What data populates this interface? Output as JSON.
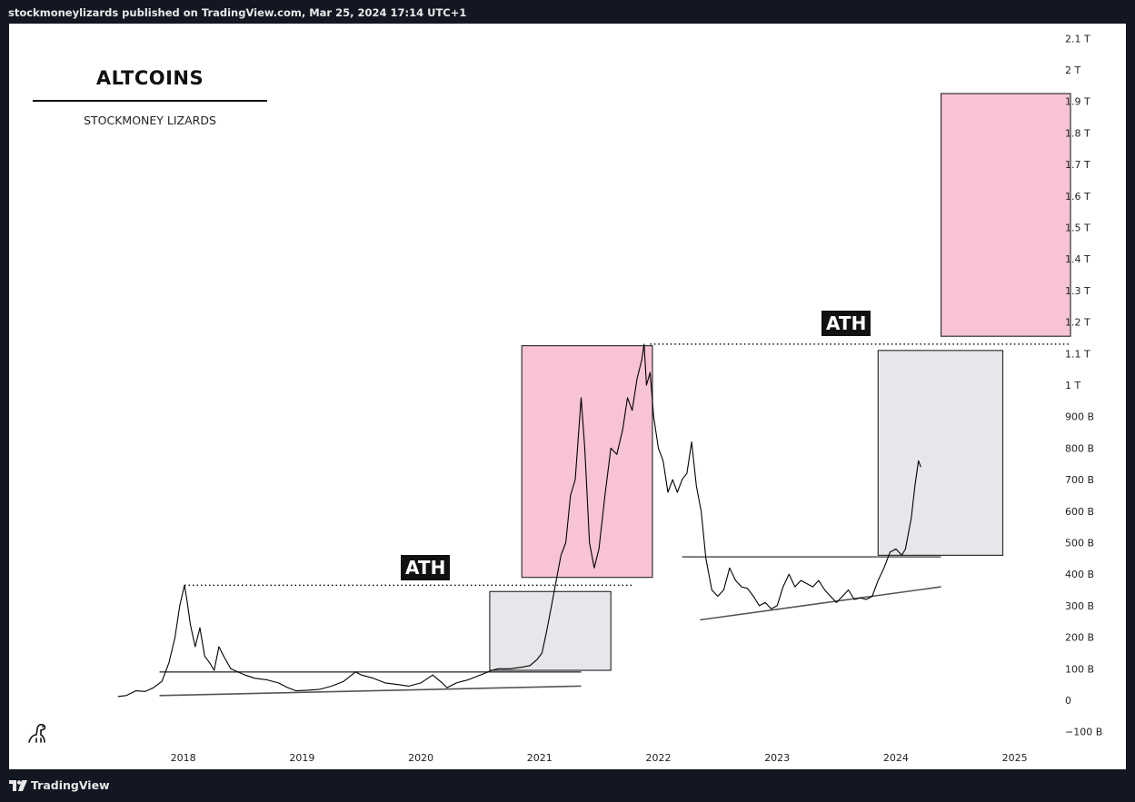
{
  "header": {
    "published_text": "stockmoneylizards published on TradingView.com, Mar 25, 2024 17:14 UTC+1"
  },
  "footer": {
    "brand": "TradingView"
  },
  "legend": {
    "title": "ALTCOINS",
    "subtitle": "STOCKMONEY LIZARDS"
  },
  "annotations": {
    "ath_label_1": "ATH",
    "ath_label_2": "ATH"
  },
  "icons": {
    "logo": "tradingview-logo-icon",
    "watermark": "dino-icon"
  },
  "colors": {
    "background": "#ffffff",
    "frame": "#131722",
    "pink_zone": "#f8c3d4",
    "grey_zone": "#e6e7ea",
    "line": "#000000"
  },
  "chart_data": {
    "type": "line",
    "title": "ALTCOINS",
    "subtitle": "STOCKMONEY LIZARDS",
    "xlabel": "",
    "ylabel": "",
    "x_ticks": [
      "2018",
      "2019",
      "2020",
      "2021",
      "2022",
      "2023",
      "2024",
      "2025"
    ],
    "y_ticks": [
      {
        "value": -100000000000.0,
        "label": "−100 B"
      },
      {
        "value": 0,
        "label": "0"
      },
      {
        "value": 100000000000.0,
        "label": "100 B"
      },
      {
        "value": 200000000000.0,
        "label": "200 B"
      },
      {
        "value": 300000000000.0,
        "label": "300 B"
      },
      {
        "value": 400000000000.0,
        "label": "400 B"
      },
      {
        "value": 500000000000.0,
        "label": "500 B"
      },
      {
        "value": 600000000000.0,
        "label": "600 B"
      },
      {
        "value": 700000000000.0,
        "label": "700 B"
      },
      {
        "value": 800000000000.0,
        "label": "800 B"
      },
      {
        "value": 900000000000.0,
        "label": "900 B"
      },
      {
        "value": 1000000000000.0,
        "label": "1 T"
      },
      {
        "value": 1100000000000.0,
        "label": "1.1 T"
      },
      {
        "value": 1200000000000.0,
        "label": "1.2 T"
      },
      {
        "value": 1300000000000.0,
        "label": "1.3 T"
      },
      {
        "value": 1400000000000.0,
        "label": "1.4 T"
      },
      {
        "value": 1500000000000.0,
        "label": "1.5 T"
      },
      {
        "value": 1600000000000.0,
        "label": "1.6 T"
      },
      {
        "value": 1700000000000.0,
        "label": "1.7 T"
      },
      {
        "value": 1800000000000.0,
        "label": "1.8 T"
      },
      {
        "value": 1900000000000.0,
        "label": "1.9 T"
      },
      {
        "value": 2000000000000.0,
        "label": "2 T"
      },
      {
        "value": 2100000000000.0,
        "label": "2.1 T"
      }
    ],
    "ylim": [
      -140000000000.0,
      2130000000000.0
    ],
    "xlim": [
      2017.45,
      2025.75
    ],
    "grid": false,
    "series": [
      {
        "points": [
          [
            2017.45,
            12000000000.0
          ],
          [
            2017.52,
            15000000000.0
          ],
          [
            2017.6,
            30000000000.0
          ],
          [
            2017.68,
            28000000000.0
          ],
          [
            2017.75,
            40000000000.0
          ],
          [
            2017.82,
            60000000000.0
          ],
          [
            2017.88,
            120000000000.0
          ],
          [
            2017.93,
            200000000000.0
          ],
          [
            2017.97,
            300000000000.0
          ],
          [
            2018.01,
            365000000000.0
          ],
          [
            2018.03,
            320000000000.0
          ],
          [
            2018.06,
            240000000000.0
          ],
          [
            2018.1,
            170000000000.0
          ],
          [
            2018.14,
            230000000000.0
          ],
          [
            2018.18,
            140000000000.0
          ],
          [
            2018.22,
            120000000000.0
          ],
          [
            2018.26,
            95000000000.0
          ],
          [
            2018.3,
            170000000000.0
          ],
          [
            2018.34,
            140000000000.0
          ],
          [
            2018.4,
            100000000000.0
          ],
          [
            2018.46,
            90000000000.0
          ],
          [
            2018.52,
            80000000000.0
          ],
          [
            2018.6,
            70000000000.0
          ],
          [
            2018.7,
            65000000000.0
          ],
          [
            2018.8,
            55000000000.0
          ],
          [
            2018.88,
            40000000000.0
          ],
          [
            2018.95,
            30000000000.0
          ],
          [
            2019.05,
            32000000000.0
          ],
          [
            2019.15,
            35000000000.0
          ],
          [
            2019.25,
            45000000000.0
          ],
          [
            2019.35,
            60000000000.0
          ],
          [
            2019.45,
            90000000000.0
          ],
          [
            2019.5,
            80000000000.0
          ],
          [
            2019.6,
            70000000000.0
          ],
          [
            2019.7,
            55000000000.0
          ],
          [
            2019.8,
            50000000000.0
          ],
          [
            2019.9,
            45000000000.0
          ],
          [
            2020.0,
            55000000000.0
          ],
          [
            2020.1,
            80000000000.0
          ],
          [
            2020.18,
            55000000000.0
          ],
          [
            2020.22,
            40000000000.0
          ],
          [
            2020.3,
            55000000000.0
          ],
          [
            2020.4,
            65000000000.0
          ],
          [
            2020.5,
            80000000000.0
          ],
          [
            2020.6,
            95000000000.0
          ],
          [
            2020.65,
            100000000000.0
          ],
          [
            2020.75,
            100000000000.0
          ],
          [
            2020.85,
            105000000000.0
          ],
          [
            2020.92,
            110000000000.0
          ],
          [
            2020.98,
            130000000000.0
          ],
          [
            2021.02,
            150000000000.0
          ],
          [
            2021.06,
            220000000000.0
          ],
          [
            2021.1,
            300000000000.0
          ],
          [
            2021.14,
            380000000000.0
          ],
          [
            2021.18,
            460000000000.0
          ],
          [
            2021.22,
            500000000000.0
          ],
          [
            2021.26,
            650000000000.0
          ],
          [
            2021.3,
            700000000000.0
          ],
          [
            2021.35,
            960000000000.0
          ],
          [
            2021.38,
            800000000000.0
          ],
          [
            2021.42,
            500000000000.0
          ],
          [
            2021.46,
            420000000000.0
          ],
          [
            2021.5,
            480000000000.0
          ],
          [
            2021.55,
            650000000000.0
          ],
          [
            2021.6,
            800000000000.0
          ],
          [
            2021.65,
            780000000000.0
          ],
          [
            2021.7,
            860000000000.0
          ],
          [
            2021.74,
            960000000000.0
          ],
          [
            2021.78,
            920000000000.0
          ],
          [
            2021.82,
            1020000000000.0
          ],
          [
            2021.86,
            1080000000000.0
          ],
          [
            2021.88,
            1130000000000.0
          ],
          [
            2021.9,
            1000000000000.0
          ],
          [
            2021.93,
            1040000000000.0
          ],
          [
            2021.96,
            900000000000.0
          ],
          [
            2022.0,
            800000000000.0
          ],
          [
            2022.04,
            760000000000.0
          ],
          [
            2022.08,
            660000000000.0
          ],
          [
            2022.12,
            700000000000.0
          ],
          [
            2022.16,
            660000000000.0
          ],
          [
            2022.2,
            700000000000.0
          ],
          [
            2022.24,
            720000000000.0
          ],
          [
            2022.28,
            820000000000.0
          ],
          [
            2022.32,
            680000000000.0
          ],
          [
            2022.36,
            600000000000.0
          ],
          [
            2022.4,
            450000000000.0
          ],
          [
            2022.45,
            350000000000.0
          ],
          [
            2022.5,
            330000000000.0
          ],
          [
            2022.55,
            350000000000.0
          ],
          [
            2022.6,
            420000000000.0
          ],
          [
            2022.65,
            380000000000.0
          ],
          [
            2022.7,
            360000000000.0
          ],
          [
            2022.75,
            355000000000.0
          ],
          [
            2022.8,
            330000000000.0
          ],
          [
            2022.85,
            300000000000.0
          ],
          [
            2022.9,
            310000000000.0
          ],
          [
            2022.95,
            290000000000.0
          ],
          [
            2023.0,
            300000000000.0
          ],
          [
            2023.05,
            360000000000.0
          ],
          [
            2023.1,
            400000000000.0
          ],
          [
            2023.15,
            360000000000.0
          ],
          [
            2023.2,
            380000000000.0
          ],
          [
            2023.25,
            370000000000.0
          ],
          [
            2023.3,
            360000000000.0
          ],
          [
            2023.35,
            380000000000.0
          ],
          [
            2023.4,
            350000000000.0
          ],
          [
            2023.45,
            330000000000.0
          ],
          [
            2023.5,
            310000000000.0
          ],
          [
            2023.55,
            330000000000.0
          ],
          [
            2023.6,
            350000000000.0
          ],
          [
            2023.65,
            320000000000.0
          ],
          [
            2023.7,
            325000000000.0
          ],
          [
            2023.75,
            320000000000.0
          ],
          [
            2023.8,
            330000000000.0
          ],
          [
            2023.85,
            380000000000.0
          ],
          [
            2023.9,
            420000000000.0
          ],
          [
            2023.95,
            470000000000.0
          ],
          [
            2024.0,
            480000000000.0
          ],
          [
            2024.05,
            460000000000.0
          ],
          [
            2024.08,
            480000000000.0
          ],
          [
            2024.1,
            520000000000.0
          ],
          [
            2024.13,
            580000000000.0
          ],
          [
            2024.16,
            680000000000.0
          ],
          [
            2024.19,
            760000000000.0
          ],
          [
            2024.21,
            740000000000.0
          ]
        ]
      }
    ],
    "zones": [
      {
        "label": "grey box 2020",
        "x": [
          2020.58,
          2021.6
        ],
        "y": [
          95000000000.0,
          345000000000.0
        ],
        "color": "#e6e7ea"
      },
      {
        "label": "pink box 2021",
        "x": [
          2020.85,
          2021.95
        ],
        "y": [
          390000000000.0,
          1125000000000.0
        ],
        "color": "#f8c3d4"
      },
      {
        "label": "grey box 2024",
        "x": [
          2023.85,
          2024.9
        ],
        "y": [
          460000000000.0,
          1110000000000.0
        ],
        "color": "#e6e7ea"
      },
      {
        "label": "pink box 2025",
        "x": [
          2024.38,
          2025.47
        ],
        "y": [
          1155000000000.0,
          1925000000000.0
        ],
        "color": "#f8c3d4"
      }
    ],
    "lines": [
      {
        "x": [
          2018.01,
          2021.78
        ],
        "y": [
          365000000000.0,
          365000000000.0
        ],
        "style": "dotted"
      },
      {
        "x": [
          2021.93,
          2025.47
        ],
        "y": [
          1130000000000.0,
          1130000000000.0
        ],
        "style": "dotted"
      },
      {
        "x": [
          2017.8,
          2021.35
        ],
        "y": [
          90000000000.0,
          90000000000.0
        ],
        "style": "solid"
      },
      {
        "x": [
          2017.8,
          2021.35
        ],
        "y": [
          15000000000.0,
          45000000000.0
        ],
        "style": "solid"
      },
      {
        "x": [
          2022.2,
          2024.38
        ],
        "y": [
          455000000000.0,
          455000000000.0
        ],
        "style": "solid"
      },
      {
        "x": [
          2022.35,
          2024.38
        ],
        "y": [
          255000000000.0,
          360000000000.0
        ],
        "style": "solid"
      }
    ]
  }
}
